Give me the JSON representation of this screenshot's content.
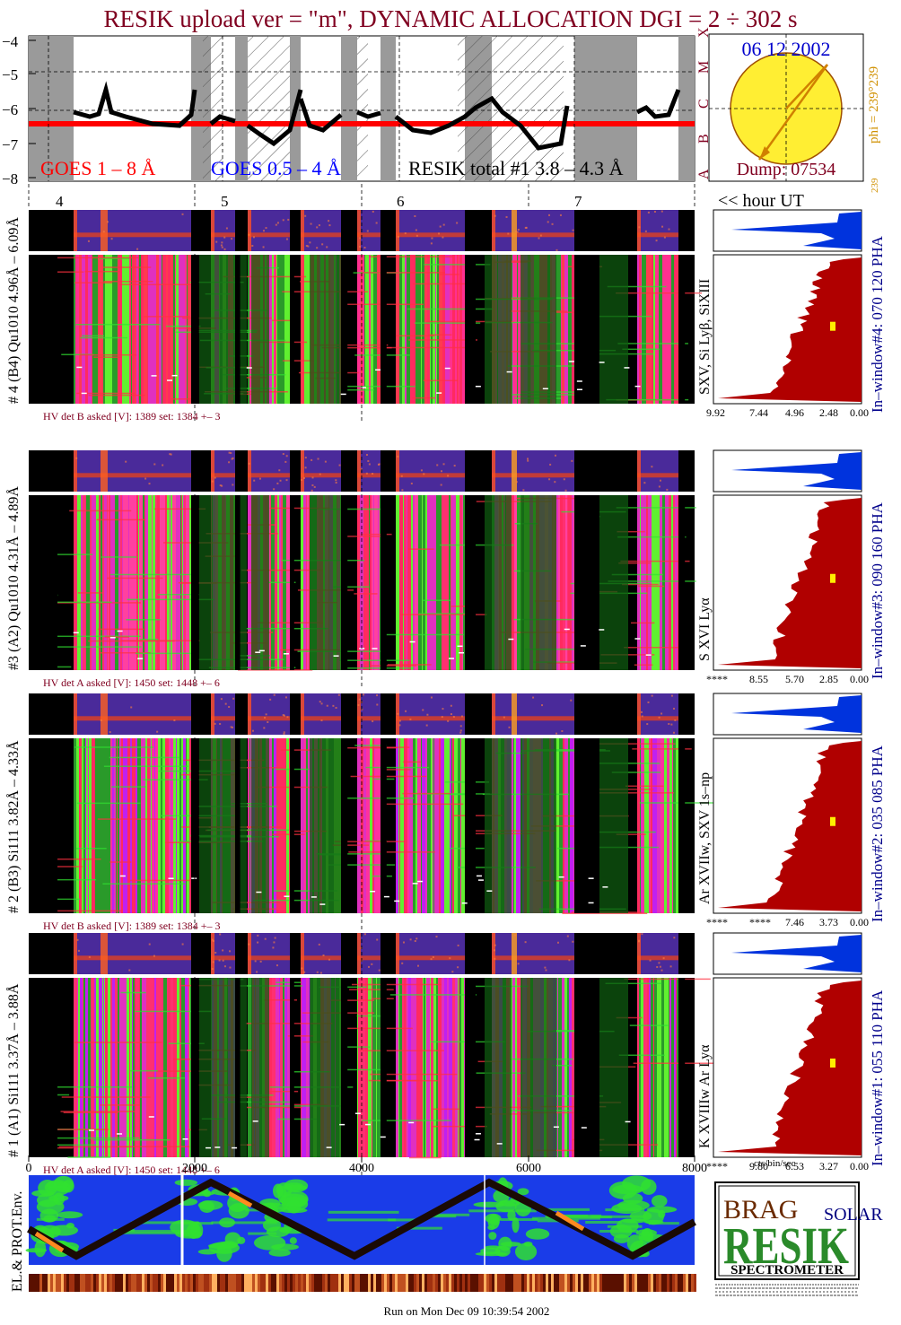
{
  "title": "RESIK upload ver = \"m\", DYNAMIC ALLOCATION  DGI =   2 ÷ 302 s",
  "goes": {
    "legend_long": "GOES 1 – 8 Å",
    "legend_short": "GOES 0.5 – 4 Å",
    "legend_resik": "RESIK total #1  3.8 – 4.3 Å",
    "y_ticks": [
      "−4",
      "−5",
      "−6",
      "−7",
      "−8"
    ],
    "class_labels": [
      "X",
      "M",
      "C",
      "B",
      "A"
    ]
  },
  "hours": [
    "4",
    "5",
    "6",
    "7"
  ],
  "hour_label": "<< hour UT",
  "sun": {
    "date": "06 12 2002",
    "dump": "Dump: 07534",
    "phi": "phi = 239°239",
    "phi_small": "239"
  },
  "panels": [
    {
      "left_label": "# 4 (B4) Qu1010 4.96Å – 6.09Å",
      "line_label": "SXV, Si Lyβ, SiXIII",
      "right_label": "In–window#4:  070 120 PHA",
      "hv": "HV det B asked [V]:  1389 set:  1384 +–    3",
      "axis_ticks": [
        "9.92",
        "7.44",
        "4.96",
        "2.48",
        "0.00"
      ]
    },
    {
      "left_label": "#3 (A2) Qu1010  4.31Å – 4.89Å",
      "line_label": "S XVI Lyα",
      "right_label": "In–window#3:  090 160 PHA",
      "hv": "HV det A asked [V]:  1450 set:  1448 +–    6",
      "axis_ticks": [
        "****",
        "8.55",
        "5.70",
        "2.85",
        "0.00"
      ]
    },
    {
      "left_label": "# 2 (B3) Si111  3.82Å – 4.33Å",
      "line_label": "Ar XVIIw,  SXV 1s–np",
      "right_label": "In–window#2:  035 085 PHA",
      "hv": "HV det B asked [V]:  1389 set:  1384 +–    3",
      "axis_ticks": [
        "****",
        "****",
        "7.46",
        "3.73",
        "0.00"
      ]
    },
    {
      "left_label": "# 1 (A1) Si111  3.37Å – 3.88Å",
      "line_label": "K XVIIIw  Ar Lyα",
      "right_label": "In–window#1:  055 110 PHA",
      "hv": "HV det A asked [V]:  1450 set:  1448 +–    6",
      "axis_ticks": [
        "****",
        "9.80",
        "6.53",
        "3.27",
        "0.00"
      ]
    }
  ],
  "x_axis_ticks": [
    "0",
    "2000",
    "4000",
    "6000",
    "8000"
  ],
  "cts_label": "cts/bin/sec",
  "env_label": "EL.& PROT.Env.",
  "logo": {
    "top": "BRAG",
    "main": "RESIK",
    "right": "SOLAR",
    "bottom": "SPECTROMETER"
  },
  "footer": "Run on Mon Dec 09 10:39:54 2002",
  "colors": {
    "title": "#800020",
    "goes_long": "#ff0000",
    "goes_short": "#0000ff",
    "sun": "#ffee33",
    "histo": "#b00000",
    "pha": "#0033dd",
    "axis_label": "#00008b"
  }
}
